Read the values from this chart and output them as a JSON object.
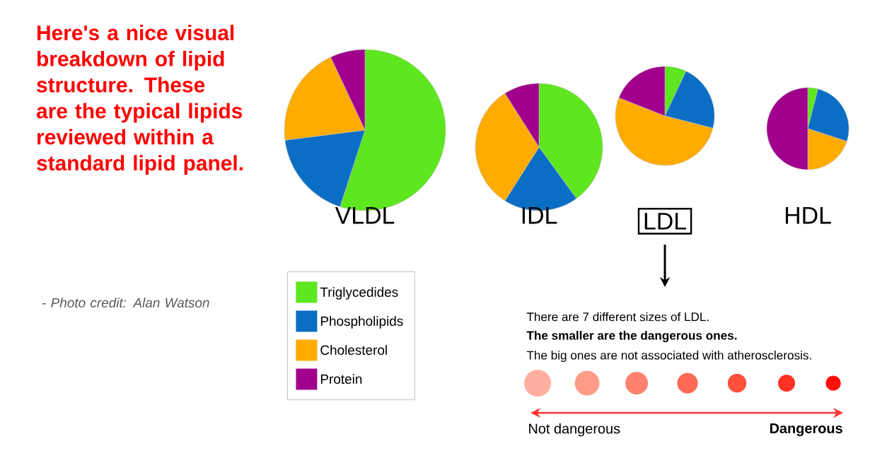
{
  "chart_data": [
    {
      "type": "pie",
      "title": "VLDL",
      "categories": [
        "Triglycedides",
        "Phospholipids",
        "Cholesterol",
        "Protein"
      ],
      "values": [
        55,
        18,
        20,
        7
      ],
      "colors": [
        "#5ee61e",
        "#0a6ec4",
        "#ffab00",
        "#a0008c"
      ],
      "legend": "bottom left",
      "annotations": [
        "Here's a nice visual breakdown of lipid structure. These are the typical lipids reviewed within a standard lipid panel.",
        "- Photo credit: Alan Watson"
      ]
    },
    {
      "type": "pie",
      "title": "IDL",
      "values": [
        40,
        19,
        32,
        9
      ],
      "colors": [
        "#5ee61e",
        "#0a6ec4",
        "#ffab00",
        "#a0008c"
      ]
    },
    {
      "type": "pie",
      "title": "LDL",
      "values": [
        7,
        22,
        52,
        19
      ],
      "colors": [
        "#5ee61e",
        "#0a6ec4",
        "#ffab00",
        "#a0008c"
      ],
      "annotations": [
        "There are 7 different sizes of LDL.",
        "The smaller are the dangerous ones.",
        "The big ones are not associated with atherosclerosis.",
        "Not dangerous",
        "Dangerous"
      ]
    },
    {
      "type": "pie",
      "title": "HDL",
      "values": [
        4,
        26,
        20,
        50
      ],
      "colors": [
        "#5ee61e",
        "#0a6ec4",
        "#ffab00",
        "#a0008c"
      ]
    }
  ]
}
